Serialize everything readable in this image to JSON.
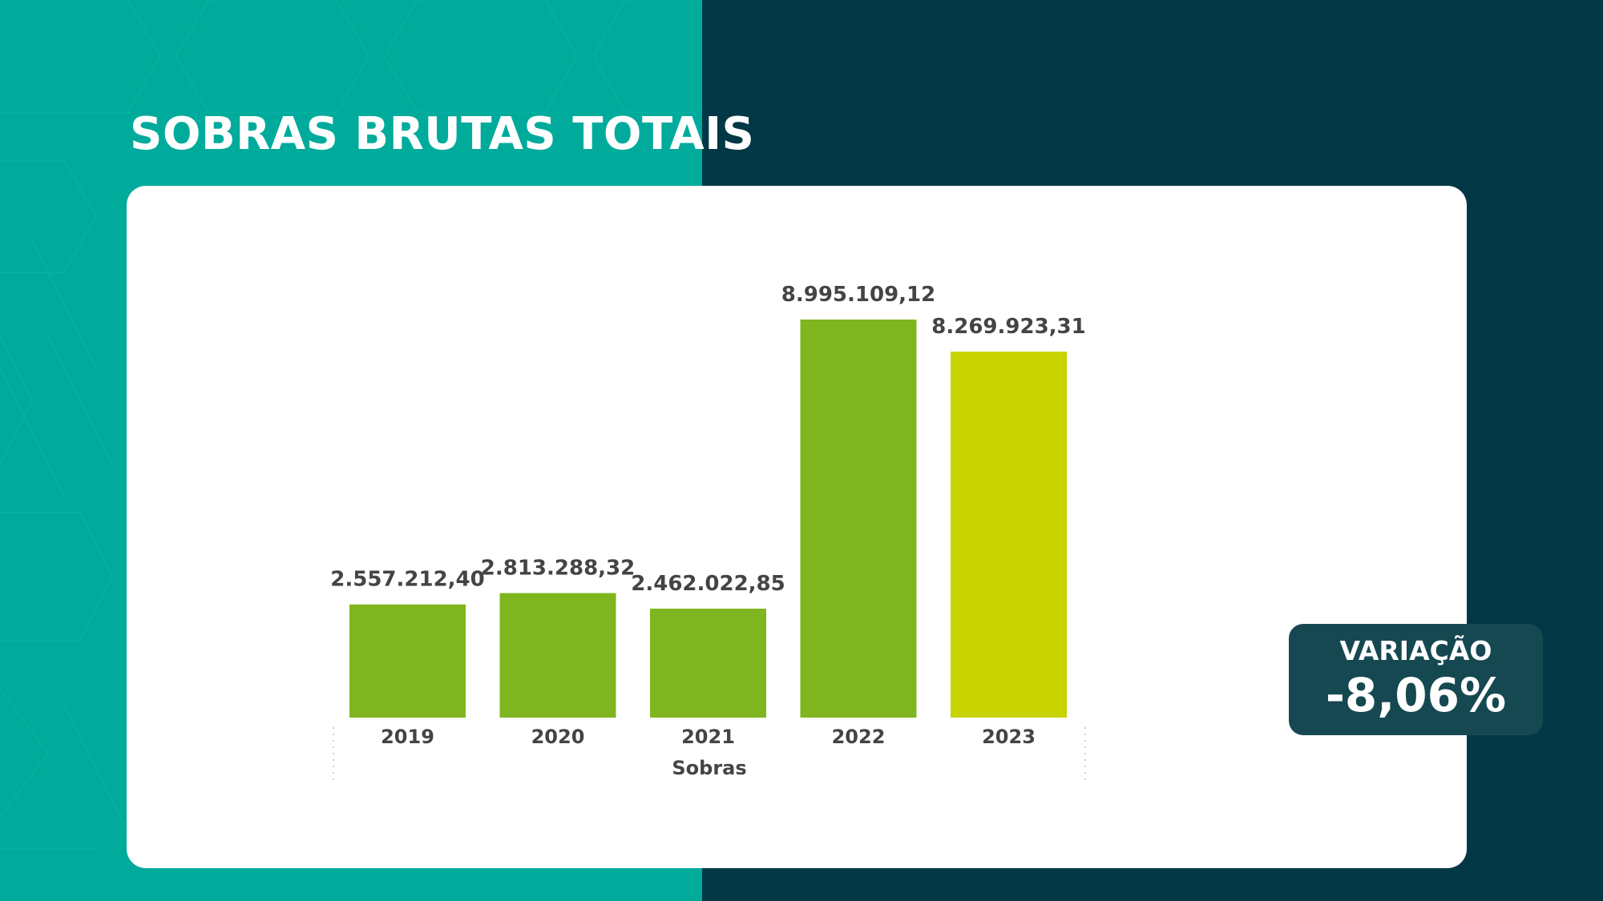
{
  "page": {
    "title": "SOBRAS BRUTAS TOTAIS"
  },
  "colors": {
    "teal_background": "#00AB9C",
    "dark_background": "#023846",
    "card_background": "#FFFFFF",
    "variation_box": "#164852",
    "bar_green": "#7FB61F",
    "bar_highlight": "#C8D400",
    "label_text": "#444444"
  },
  "variation": {
    "label": "VARIAÇÃO",
    "value": "-8,06%"
  },
  "chart_data": {
    "type": "bar",
    "title": "",
    "xlabel": "Sobras",
    "ylabel": "",
    "grid": false,
    "categories": [
      "2019",
      "2020",
      "2021",
      "2022",
      "2023"
    ],
    "values": [
      2557212.4,
      2813288.32,
      2462022.85,
      8995109.12,
      8269923.31
    ],
    "data_labels": [
      "2.557.212,40",
      "2.813.288,32",
      "2.462.022,85",
      "8.995.109,12",
      "8.269.923,31"
    ],
    "highlight_category": "2023",
    "ylim": [
      0,
      8995109.12
    ]
  }
}
